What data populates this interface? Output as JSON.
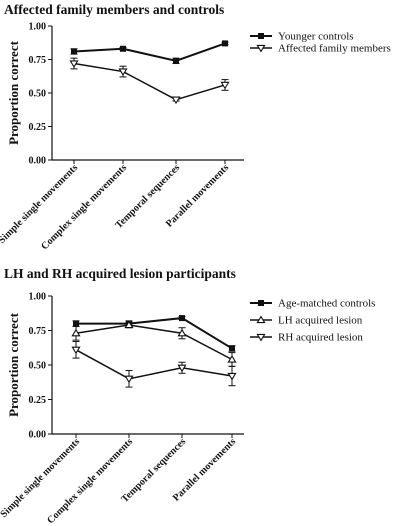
{
  "chart_data": [
    {
      "type": "line",
      "title": "Affected family members and controls",
      "ylabel": "Proportion correct",
      "xlabel": "",
      "ylim": [
        0.0,
        1.0
      ],
      "yticks": [
        "0.00",
        "0.25",
        "0.50",
        "0.75",
        "1.00"
      ],
      "categories": [
        "Simple single movements",
        "Complex single movements",
        "Temporal sequences",
        "Parallel movements"
      ],
      "legend_position": "top-right",
      "series": [
        {
          "name": "Younger controls",
          "marker": "square",
          "values": [
            0.81,
            0.83,
            0.74,
            0.87
          ],
          "errors": [
            0.02,
            0.01,
            0.02,
            0.01
          ]
        },
        {
          "name": "Affected family members",
          "marker": "triangle-down",
          "values": [
            0.72,
            0.66,
            0.45,
            0.56
          ],
          "errors": [
            0.04,
            0.04,
            0.01,
            0.04
          ]
        }
      ]
    },
    {
      "type": "line",
      "title": "LH and RH acquired lesion participants",
      "ylabel": "Proportion correct",
      "xlabel": "",
      "ylim": [
        0.0,
        1.0
      ],
      "yticks": [
        "0.00",
        "0.25",
        "0.50",
        "0.75",
        "1.00"
      ],
      "categories": [
        "Simple single movements",
        "Complex single movements",
        "Temporal sequences",
        "Parallel movements"
      ],
      "legend_position": "top-right",
      "series": [
        {
          "name": "Age-matched controls",
          "marker": "square",
          "values": [
            0.8,
            0.8,
            0.84,
            0.62
          ],
          "errors": [
            0.02,
            0.02,
            0.01,
            0.02
          ]
        },
        {
          "name": "LH acquired lesion",
          "marker": "triangle-up",
          "values": [
            0.73,
            0.79,
            0.73,
            0.54
          ],
          "errors": [
            0.05,
            0.02,
            0.04,
            0.05
          ]
        },
        {
          "name": "RH acquired lesion",
          "marker": "triangle-down",
          "values": [
            0.61,
            0.4,
            0.48,
            0.42
          ],
          "errors": [
            0.06,
            0.06,
            0.04,
            0.07
          ]
        }
      ]
    }
  ]
}
